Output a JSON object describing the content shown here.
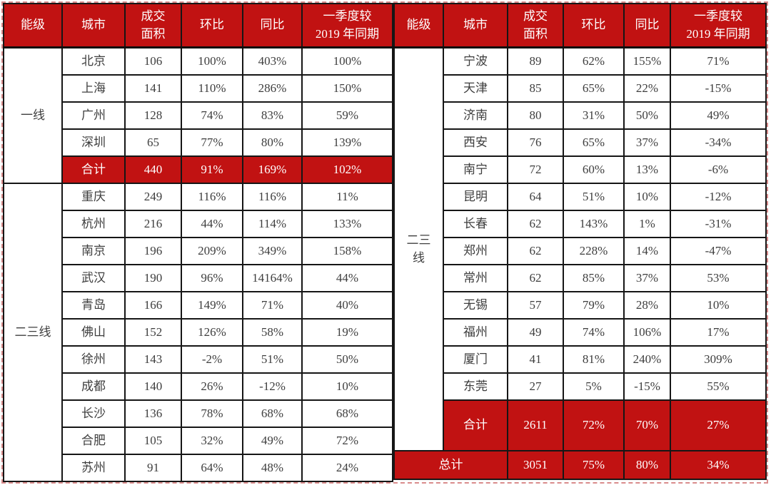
{
  "colors": {
    "accent_red": "#c11212",
    "header_text": "#ffffff",
    "body_text": "#3e3e3e",
    "grid_border": "#161616",
    "outer_dashed_border": "#d98c8c"
  },
  "chart_data": {
    "type": "table",
    "columns": [
      "能级",
      "城市",
      "成交面积",
      "环比",
      "同比",
      "一季度较2019年同期"
    ],
    "header_cells": [
      "能级",
      "城市",
      "成交\n面积",
      "环比",
      "同比",
      "一季度较\n2019 年同期"
    ],
    "left": {
      "rows": [
        {
          "tier": "一线",
          "tierSpan": 5,
          "city": "北京",
          "v": [
            "106",
            "100%",
            "403%",
            "100%"
          ],
          "kind": "data"
        },
        {
          "city": "上海",
          "v": [
            "141",
            "110%",
            "286%",
            "150%"
          ],
          "kind": "data"
        },
        {
          "city": "广州",
          "v": [
            "128",
            "74%",
            "83%",
            "59%"
          ],
          "kind": "data"
        },
        {
          "city": "深圳",
          "v": [
            "65",
            "77%",
            "80%",
            "139%"
          ],
          "kind": "data"
        },
        {
          "city": "合计",
          "v": [
            "440",
            "91%",
            "169%",
            "102%"
          ],
          "kind": "total"
        },
        {
          "tier": "二三线",
          "tierSpan": 11,
          "city": "重庆",
          "v": [
            "249",
            "116%",
            "116%",
            "11%"
          ],
          "kind": "data"
        },
        {
          "city": "杭州",
          "v": [
            "216",
            "44%",
            "114%",
            "133%"
          ],
          "kind": "data"
        },
        {
          "city": "南京",
          "v": [
            "196",
            "209%",
            "349%",
            "158%"
          ],
          "kind": "data"
        },
        {
          "city": "武汉",
          "v": [
            "190",
            "96%",
            "14164%",
            "44%"
          ],
          "kind": "data"
        },
        {
          "city": "青岛",
          "v": [
            "166",
            "149%",
            "71%",
            "40%"
          ],
          "kind": "data"
        },
        {
          "city": "佛山",
          "v": [
            "152",
            "126%",
            "58%",
            "19%"
          ],
          "kind": "data"
        },
        {
          "city": "徐州",
          "v": [
            "143",
            "-2%",
            "51%",
            "50%"
          ],
          "kind": "data"
        },
        {
          "city": "成都",
          "v": [
            "140",
            "26%",
            "-12%",
            "10%"
          ],
          "kind": "data"
        },
        {
          "city": "长沙",
          "v": [
            "136",
            "78%",
            "68%",
            "68%"
          ],
          "kind": "data"
        },
        {
          "city": "合肥",
          "v": [
            "105",
            "32%",
            "49%",
            "72%"
          ],
          "kind": "data"
        },
        {
          "city": "苏州",
          "v": [
            "91",
            "64%",
            "48%",
            "24%"
          ],
          "kind": "data"
        }
      ]
    },
    "right": {
      "rows": [
        {
          "tier": "二三\n线",
          "tierSpan": 14,
          "city": "宁波",
          "v": [
            "89",
            "62%",
            "155%",
            "71%"
          ],
          "kind": "data"
        },
        {
          "city": "天津",
          "v": [
            "85",
            "65%",
            "22%",
            "-15%"
          ],
          "kind": "data"
        },
        {
          "city": "济南",
          "v": [
            "80",
            "31%",
            "50%",
            "49%"
          ],
          "kind": "data"
        },
        {
          "city": "西安",
          "v": [
            "76",
            "65%",
            "37%",
            "-34%"
          ],
          "kind": "data"
        },
        {
          "city": "南宁",
          "v": [
            "72",
            "60%",
            "13%",
            "-6%"
          ],
          "kind": "data"
        },
        {
          "city": "昆明",
          "v": [
            "64",
            "51%",
            "10%",
            "-12%"
          ],
          "kind": "data"
        },
        {
          "city": "长春",
          "v": [
            "62",
            "143%",
            "1%",
            "-31%"
          ],
          "kind": "data"
        },
        {
          "city": "郑州",
          "v": [
            "62",
            "228%",
            "14%",
            "-47%"
          ],
          "kind": "data"
        },
        {
          "city": "常州",
          "v": [
            "62",
            "85%",
            "37%",
            "53%"
          ],
          "kind": "data"
        },
        {
          "city": "无锡",
          "v": [
            "57",
            "79%",
            "28%",
            "10%"
          ],
          "kind": "data"
        },
        {
          "city": "福州",
          "v": [
            "49",
            "74%",
            "106%",
            "17%"
          ],
          "kind": "data"
        },
        {
          "city": "厦门",
          "v": [
            "41",
            "81%",
            "240%",
            "309%"
          ],
          "kind": "data"
        },
        {
          "city": "东莞",
          "v": [
            "27",
            "5%",
            "-15%",
            "55%"
          ],
          "kind": "data"
        },
        {
          "city": "合计",
          "v": [
            "2611",
            "72%",
            "70%",
            "27%"
          ],
          "kind": "total-tall"
        },
        {
          "city": "总计",
          "citySpan": 2,
          "v": [
            "3051",
            "75%",
            "80%",
            "34%"
          ],
          "kind": "grand"
        }
      ]
    }
  }
}
